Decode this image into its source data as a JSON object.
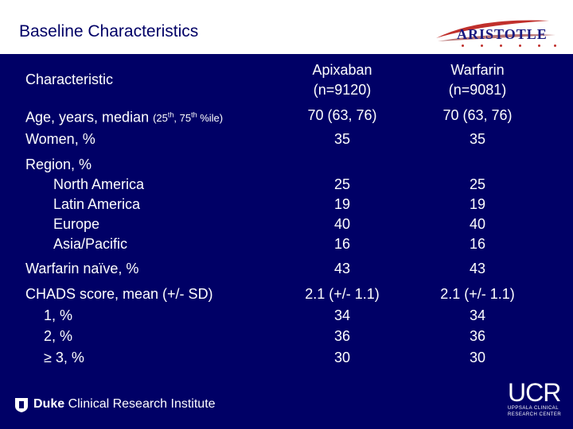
{
  "title": "Baseline Characteristics",
  "logo_aristotle": "ARISTOTLE",
  "columns": {
    "characteristic": "Characteristic",
    "apixaban": [
      "Apixaban",
      "(n=9120)"
    ],
    "warfarin": [
      "Warfarin",
      "(n=9081)"
    ]
  },
  "rows": {
    "age": {
      "label": "Age, years, median ",
      "label_small": "(25th, 75th %ile)",
      "apix": "70 (63, 76)",
      "warf": "70 (63, 76)"
    },
    "women": {
      "label": "Women, %",
      "apix": "35",
      "warf": "35"
    },
    "region": {
      "label": "Region, %",
      "items": [
        {
          "label": "North America",
          "apix": "25",
          "warf": "25"
        },
        {
          "label": "Latin America",
          "apix": "19",
          "warf": "19"
        },
        {
          "label": "Europe",
          "apix": "40",
          "warf": "40"
        },
        {
          "label": "Asia/Pacific",
          "apix": "16",
          "warf": "16"
        }
      ]
    },
    "warfarin_naive": {
      "label": "Warfarin naïve, %",
      "apix": "43",
      "warf": "43"
    },
    "chads": {
      "label": "CHADS score, mean (+/- SD)",
      "apix": "2.1 (+/- 1.1)",
      "warf": "2.1 (+/- 1.1)",
      "items": [
        {
          "label": "1, %",
          "apix": "34",
          "warf": "34"
        },
        {
          "label": "2, %",
          "apix": "36",
          "warf": "36"
        },
        {
          "label": "≥ 3, %",
          "apix": "30",
          "warf": "30"
        }
      ]
    }
  },
  "footer": {
    "duke_bold": "Duke",
    "duke_rest": " Clinical Research Institute",
    "ucr_word": "UCR",
    "ucr_sub1": "UPPSALA CLINICAL",
    "ucr_sub2": "RESEARCH CENTER"
  }
}
